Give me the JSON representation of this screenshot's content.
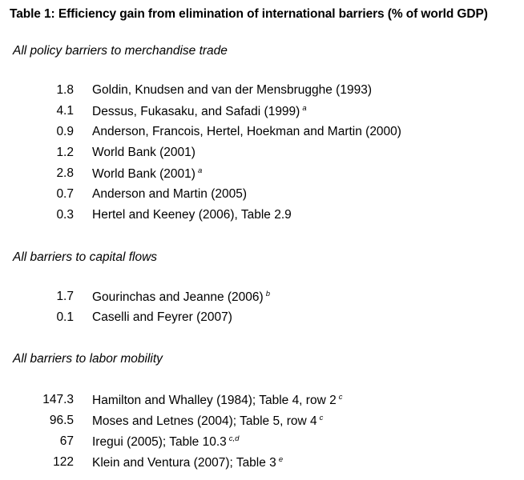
{
  "title": "Table 1: Efficiency gain from elimination of international barriers (% of world GDP)",
  "sections": [
    {
      "heading": "All policy barriers to merchandise trade",
      "rows": [
        {
          "value": "1.8",
          "source": "Goldin, Knudsen and van der Mensbrugghe (1993)",
          "note": ""
        },
        {
          "value": "4.1",
          "source": "Dessus, Fukasaku, and Safadi (1999)",
          "note": "a"
        },
        {
          "value": "0.9",
          "source": "Anderson, Francois, Hertel, Hoekman and Martin (2000)",
          "note": ""
        },
        {
          "value": "1.2",
          "source": "World Bank (2001)",
          "note": ""
        },
        {
          "value": "2.8",
          "source": "World Bank (2001)",
          "note": "a"
        },
        {
          "value": "0.7",
          "source": "Anderson and Martin (2005)",
          "note": ""
        },
        {
          "value": "0.3",
          "source": "Hertel and Keeney (2006), Table 2.9",
          "note": ""
        }
      ]
    },
    {
      "heading": "All barriers to capital flows",
      "rows": [
        {
          "value": "1.7",
          "source": "Gourinchas and Jeanne (2006)",
          "note": "b"
        },
        {
          "value": "0.1",
          "source": "Caselli and Feyrer (2007)",
          "note": ""
        }
      ]
    },
    {
      "heading": "All barriers to labor mobility",
      "rows": [
        {
          "value": "147.3",
          "source": "Hamilton and Whalley (1984); Table 4, row 2",
          "note": "c"
        },
        {
          "value": "96.5",
          "source": "Moses and Letnes (2004); Table 5, row 4",
          "note": "c"
        },
        {
          "value": "67",
          "source": "Iregui (2005); Table 10.3",
          "note": "c,d"
        },
        {
          "value": "122",
          "source": "Klein and Ventura (2007); Table 3",
          "note": "e"
        }
      ]
    }
  ]
}
